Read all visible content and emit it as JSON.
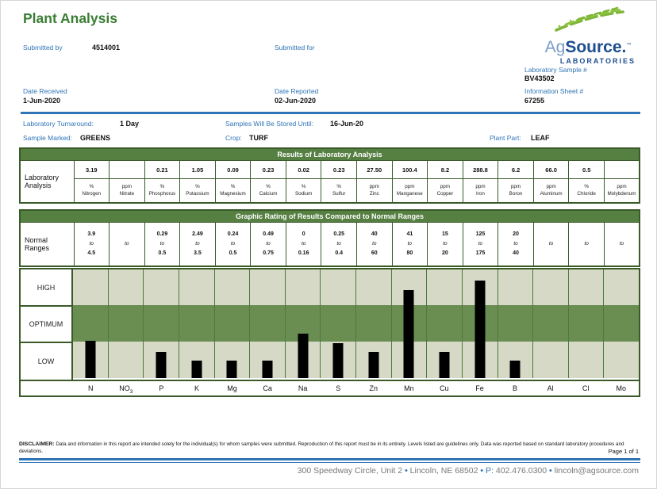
{
  "page": {
    "title": "Plant Analysis",
    "page_label": "Page 1 of 1"
  },
  "logo": {
    "ag": "Ag",
    "source": "Source.",
    "tm": "™",
    "laboratories": "LABORATORIES"
  },
  "header": {
    "submitted_by_label": "Submitted by",
    "submitted_by_value": "4514001",
    "submitted_for_label": "Submitted for",
    "lab_sample_label": "Laboratory Sample #",
    "lab_sample_value": "BV43502",
    "date_received_label": "Date Received",
    "date_received_value": "1-Jun-2020",
    "date_reported_label": "Date Reported",
    "date_reported_value": "02-Jun-2020",
    "info_sheet_label": "Information Sheet #",
    "info_sheet_value": "67255"
  },
  "meta": {
    "turnaround_label": "Laboratory Turnaround:",
    "turnaround_value": "1 Day",
    "stored_label": "Samples Will Be Stored Until:",
    "stored_value": "16-Jun-20",
    "marked_label": "Sample Marked:",
    "marked_value": "GREENS",
    "crop_label": "Crop:",
    "crop_value": "TURF",
    "plant_part_label": "Plant Part:",
    "plant_part_value": "LEAF"
  },
  "results_table": {
    "header": "Results of Laboratory Analysis",
    "row_label": "Laboratory Analysis",
    "columns": [
      {
        "value": "3.19",
        "unit": "%",
        "name": "Nitrogen"
      },
      {
        "value": "",
        "unit": "ppm",
        "name": "Nitrate"
      },
      {
        "value": "0.21",
        "unit": "%",
        "name": "Phosphorus"
      },
      {
        "value": "1.05",
        "unit": "%",
        "name": "Potassium"
      },
      {
        "value": "0.09",
        "unit": "%",
        "name": "Magnesium"
      },
      {
        "value": "0.23",
        "unit": "%",
        "name": "Calcium"
      },
      {
        "value": "0.02",
        "unit": "%",
        "name": "Sodium"
      },
      {
        "value": "0.23",
        "unit": "%",
        "name": "Sulfur"
      },
      {
        "value": "27.50",
        "unit": "ppm",
        "name": "Zinc"
      },
      {
        "value": "100.4",
        "unit": "ppm",
        "name": "Manganese"
      },
      {
        "value": "8.2",
        "unit": "ppm",
        "name": "Copper"
      },
      {
        "value": "288.8",
        "unit": "ppm",
        "name": "Iron"
      },
      {
        "value": "6.2",
        "unit": "ppm",
        "name": "Boron"
      },
      {
        "value": "66.0",
        "unit": "ppm",
        "name": "Aluminum"
      },
      {
        "value": "0.5",
        "unit": "%",
        "name": "Chloride"
      },
      {
        "value": "",
        "unit": "ppm",
        "name": "Molybdenum"
      }
    ]
  },
  "ranges_table": {
    "header": "Graphic Rating of Results Compared to Normal Ranges",
    "row_label": "Normal Ranges",
    "to_word": "to",
    "columns": [
      {
        "low": "3.9",
        "high": "4.5"
      },
      {
        "low": "",
        "high": ""
      },
      {
        "low": "0.29",
        "high": "0.5"
      },
      {
        "low": "2.49",
        "high": "3.5"
      },
      {
        "low": "0.24",
        "high": "0.5"
      },
      {
        "low": "0.49",
        "high": "0.75"
      },
      {
        "low": "0",
        "high": "0.16"
      },
      {
        "low": "0.25",
        "high": "0.4"
      },
      {
        "low": "40",
        "high": "60"
      },
      {
        "low": "41",
        "high": "80"
      },
      {
        "low": "15",
        "high": "20"
      },
      {
        "low": "125",
        "high": "175"
      },
      {
        "low": "20",
        "high": "40"
      },
      {
        "low": "",
        "high": ""
      },
      {
        "low": "",
        "high": ""
      },
      {
        "low": "",
        "high": ""
      }
    ]
  },
  "chart_data": {
    "type": "bar",
    "title": "Graphic Rating of Results Compared to Normal Ranges",
    "zones": [
      "HIGH",
      "OPTIMUM",
      "LOW"
    ],
    "zone_band_color": "#6a8d52",
    "outer_band_color": "#d5d9c5",
    "bar_color": "#000000",
    "categories": [
      "N",
      "NO3",
      "P",
      "K",
      "Mg",
      "Ca",
      "Na",
      "S",
      "Zn",
      "Mn",
      "Cu",
      "Fe",
      "B",
      "Al",
      "Cl",
      "Mo"
    ],
    "values_pct_of_chart_height": [
      34,
      0,
      24,
      16,
      16,
      16,
      41,
      32,
      24,
      81,
      24,
      90,
      16,
      0,
      0,
      0
    ],
    "ratings": [
      "low",
      "none",
      "low",
      "low",
      "low",
      "low",
      "optimum",
      "low",
      "low",
      "high",
      "low",
      "high",
      "low",
      "none",
      "none",
      "none"
    ],
    "legend_position": "left-row-labels",
    "grid": true
  },
  "disclaimer": {
    "label": "DISCLAIMER:",
    "text": "Data and information in this report are intended solely for the individual(s) for whom samples were submitted. Reproduction of this report must be in its entirety. Levels listed are guidelines only. Data was reported based on standard laboratory procedures and deviations."
  },
  "footer": {
    "address": "300 Speedway Circle, Unit 2",
    "city": "Lincoln, NE 68502",
    "phone_label": "P:",
    "phone": "402.476.0300",
    "email": "lincoln@agsource.com",
    "bullet": "•"
  },
  "colors": {
    "accent_blue": "#2e74b6",
    "brand_navy": "#1d4e8f",
    "brand_light_blue": "#7b9cc9",
    "brand_green": "#7fb539",
    "title_green": "#3a7d33",
    "band_green": "#567f42",
    "table_border_green": "#3a5a2a"
  }
}
